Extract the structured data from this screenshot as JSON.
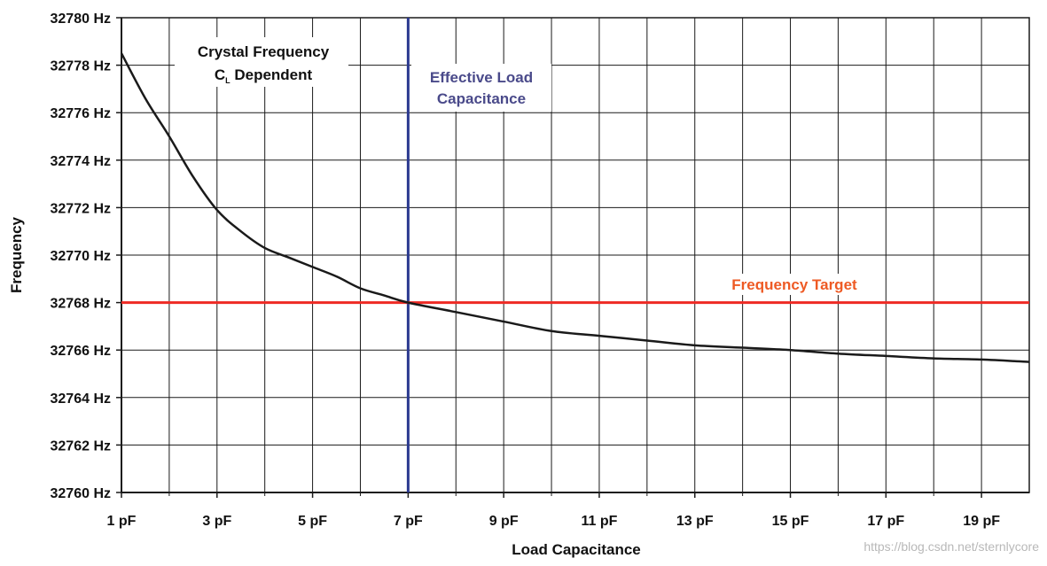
{
  "chart_data": {
    "type": "line",
    "xlabel": "Load Capacitance",
    "ylabel": "Frequency",
    "xlim": [
      1,
      20
    ],
    "ylim": [
      32760,
      32780
    ],
    "x_tick_values": [
      1,
      3,
      5,
      7,
      9,
      11,
      13,
      15,
      17,
      19
    ],
    "x_tick_labels": [
      "1 pF",
      "3 pF",
      "5 pF",
      "7 pF",
      "9 pF",
      "11 pF",
      "13 pF",
      "15 pF",
      "17 pF",
      "19 pF"
    ],
    "y_tick_values": [
      32760,
      32762,
      32764,
      32766,
      32768,
      32770,
      32772,
      32774,
      32776,
      32778,
      32780
    ],
    "y_tick_labels": [
      "32760 Hz",
      "32762 Hz",
      "32764 Hz",
      "32766 Hz",
      "32768 Hz",
      "32770 Hz",
      "32772 Hz",
      "32774 Hz",
      "32776 Hz",
      "32778 Hz",
      "32780 Hz"
    ],
    "grid": true,
    "x_grid_step": 1,
    "y_grid_step": 2,
    "series": [
      {
        "color": "#1a1a1a",
        "x": [
          1,
          1.5,
          2,
          2.5,
          3,
          3.5,
          4,
          4.5,
          5,
          5.5,
          6,
          6.5,
          7,
          8,
          9,
          10,
          11,
          12,
          13,
          14,
          15,
          16,
          17,
          18,
          19,
          20
        ],
        "y": [
          32778.5,
          32776.6,
          32775.0,
          32773.3,
          32771.9,
          32771.0,
          32770.3,
          32769.9,
          32769.5,
          32769.1,
          32768.6,
          32768.3,
          32768.0,
          32767.6,
          32767.2,
          32766.8,
          32766.6,
          32766.4,
          32766.2,
          32766.1,
          32766.0,
          32765.85,
          32765.75,
          32765.65,
          32765.6,
          32765.5
        ]
      }
    ],
    "reference_lines": [
      {
        "orientation": "vertical",
        "value": 7,
        "color": "#2b3990",
        "label_lines": [
          "Effective Load",
          "Capacitance"
        ]
      },
      {
        "orientation": "horizontal",
        "value": 32768,
        "color": "#ee2a24",
        "label_lines": [
          "Frequency Target"
        ]
      }
    ],
    "annotations": [
      {
        "line1": "Crystal Frequency",
        "line2_main": "C",
        "line2_sub": "L",
        "line2_rest": " Dependent"
      }
    ],
    "watermark": "https://blog.csdn.net/sternlycore"
  },
  "colors": {
    "grid": "#1a1a1a",
    "curve": "#1a1a1a",
    "target_label": "#ee5a24",
    "effective_label": "#4a4a8a"
  }
}
